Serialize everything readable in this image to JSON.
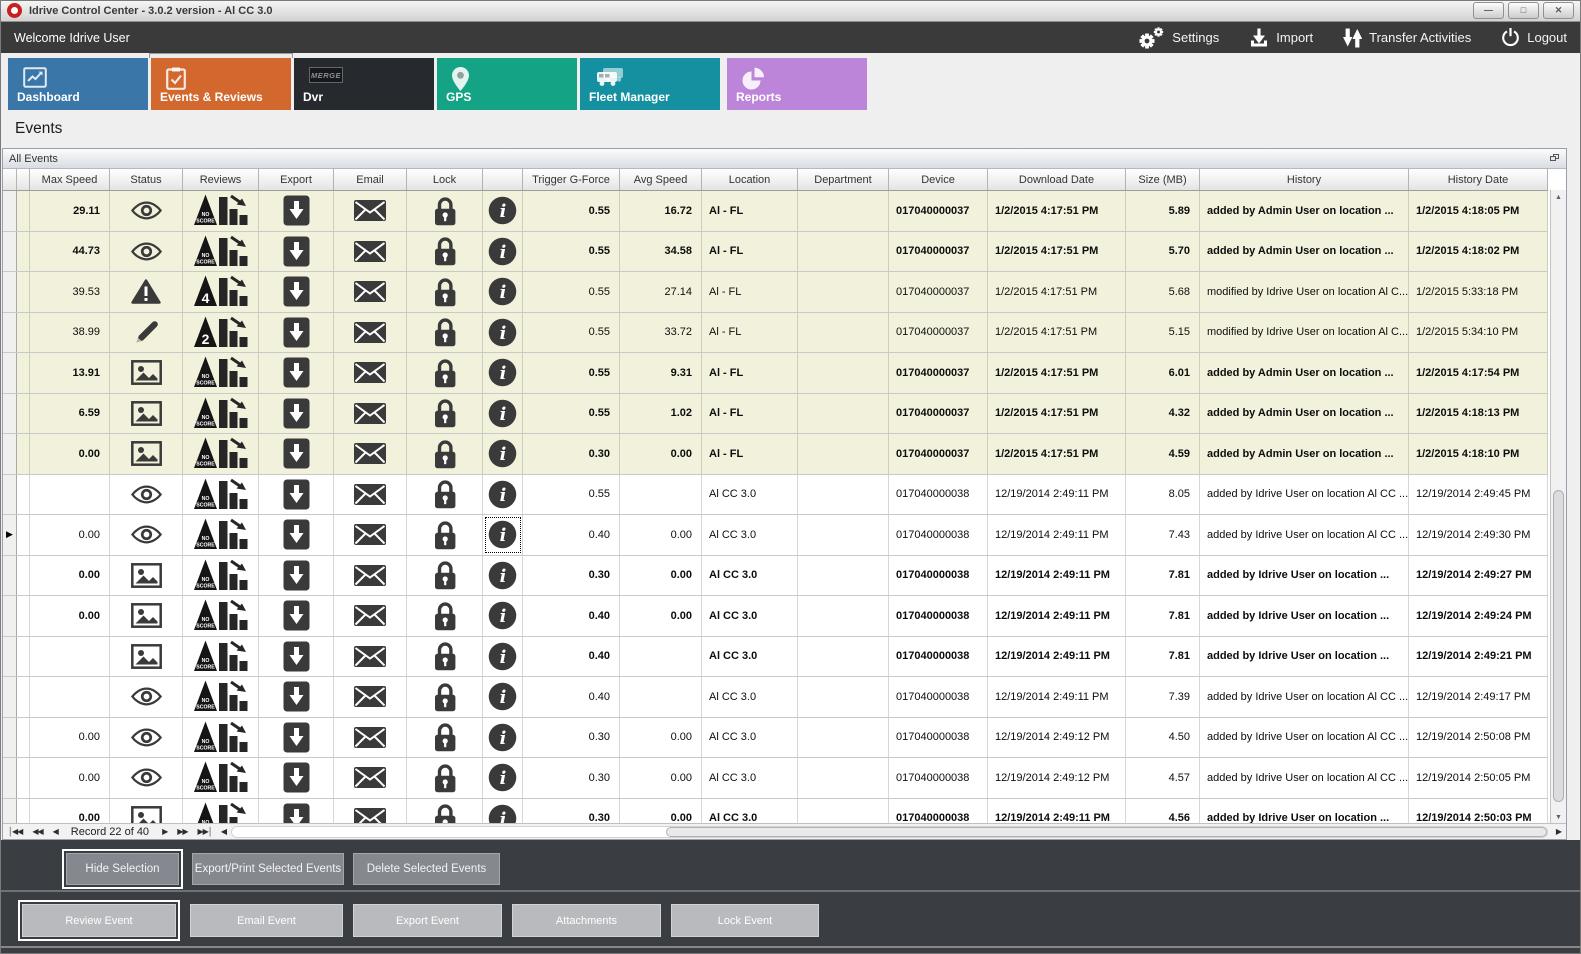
{
  "window": {
    "title": "Idrive Control Center - 3.0.2 version - Al CC 3.0",
    "controls": [
      {
        "name": "minimize",
        "glyph": "—"
      },
      {
        "name": "maximize",
        "glyph": "□"
      },
      {
        "name": "close",
        "glyph": "✕"
      }
    ]
  },
  "menubar": {
    "welcome": "Welcome Idrive User",
    "actions": [
      {
        "label": "Settings",
        "icon": "gears"
      },
      {
        "label": "Import",
        "icon": "import-arrow"
      },
      {
        "label": "Transfer Activities",
        "icon": "transfer-arrows"
      },
      {
        "label": "Logout",
        "icon": "power"
      }
    ]
  },
  "tabs": [
    {
      "label": "Dashboard",
      "color": "#3a76a8",
      "icon": "line-chart",
      "active": false
    },
    {
      "label": "Events & Reviews",
      "color": "#d2682e",
      "icon": "checklist",
      "active": true
    },
    {
      "label": "Dvr",
      "color": "#26292d",
      "icon": "merge-badge",
      "active": false
    },
    {
      "label": "GPS",
      "color": "#14a385",
      "icon": "location-pin",
      "active": false
    },
    {
      "label": "Fleet Manager",
      "color": "#1590a0",
      "icon": "vehicles",
      "active": false
    },
    {
      "label": "Reports",
      "color": "#bd85da",
      "icon": "pie-chart",
      "active": false
    }
  ],
  "section_title": "Events",
  "panel_title": "All Events",
  "table": {
    "columns": [
      "",
      "",
      "Max Speed",
      "Status",
      "Reviews",
      "Export",
      "Email",
      "Lock",
      "",
      "Trigger G-Force",
      "Avg Speed",
      "Location",
      "Department",
      "Device",
      "Download Date",
      "Size (MB)",
      "History",
      "History Date"
    ],
    "rows": [
      {
        "clip": "2",
        "max_speed": "29.11",
        "status": "eye",
        "score": "NO SCORE",
        "trigger": "0.55",
        "avg_speed": "16.72",
        "location": "Al - FL",
        "department": "",
        "device": "017040000037",
        "download_date": "1/2/2015 4:17:51 PM",
        "size": "5.89",
        "history": "added by Admin User on location ...",
        "history_date": "1/2/2015 4:18:05 PM",
        "bold": true,
        "highlight": true,
        "current": false
      },
      {
        "clip": "6",
        "max_speed": "44.73",
        "status": "eye",
        "score": "NO SCORE",
        "trigger": "0.55",
        "avg_speed": "34.58",
        "location": "Al - FL",
        "department": "",
        "device": "017040000037",
        "download_date": "1/2/2015 4:17:51 PM",
        "size": "5.70",
        "history": "added by Admin User on location ...",
        "history_date": "1/2/2015 4:18:02 PM",
        "bold": true,
        "highlight": true,
        "current": false
      },
      {
        "clip": "4",
        "max_speed": "39.53",
        "status": "warning",
        "score": "4",
        "trigger": "0.55",
        "avg_speed": "27.14",
        "location": "Al - FL",
        "department": "",
        "device": "017040000037",
        "download_date": "1/2/2015 4:17:51 PM",
        "size": "5.68",
        "history": "modified by Idrive User on location Al C...",
        "history_date": "1/2/2015 5:33:18 PM",
        "bold": false,
        "highlight": true,
        "current": false
      },
      {
        "clip": "9",
        "max_speed": "38.99",
        "status": "pencil",
        "score": "2",
        "trigger": "0.55",
        "avg_speed": "33.72",
        "location": "Al - FL",
        "department": "",
        "device": "017040000037",
        "download_date": "1/2/2015 4:17:51 PM",
        "size": "5.15",
        "history": "modified by Idrive User on location Al C...",
        "history_date": "1/2/2015 5:34:10 PM",
        "bold": false,
        "highlight": true,
        "current": false
      },
      {
        "clip": "6",
        "max_speed": "13.91",
        "status": "image",
        "score": "NO SCORE",
        "trigger": "0.55",
        "avg_speed": "9.31",
        "location": "Al - FL",
        "department": "",
        "device": "017040000037",
        "download_date": "1/2/2015 4:17:51 PM",
        "size": "6.01",
        "history": "added by Admin User on location ...",
        "history_date": "1/2/2015 4:17:54 PM",
        "bold": true,
        "highlight": true,
        "current": false
      },
      {
        "clip": "0",
        "max_speed": "6.59",
        "status": "image",
        "score": "NO SCORE",
        "trigger": "0.55",
        "avg_speed": "1.02",
        "location": "Al - FL",
        "department": "",
        "device": "017040000037",
        "download_date": "1/2/2015 4:17:51 PM",
        "size": "4.32",
        "history": "added by Admin User on location ...",
        "history_date": "1/2/2015 4:18:13 PM",
        "bold": true,
        "highlight": true,
        "current": false
      },
      {
        "clip": "0",
        "max_speed": "0.00",
        "status": "image",
        "score": "NO SCORE",
        "trigger": "0.30",
        "avg_speed": "0.00",
        "location": "Al - FL",
        "department": "",
        "device": "017040000037",
        "download_date": "1/2/2015 4:17:51 PM",
        "size": "4.59",
        "history": "added by Admin User on location ...",
        "history_date": "1/2/2015 4:18:10 PM",
        "bold": true,
        "highlight": true,
        "current": false
      },
      {
        "clip": "6",
        "max_speed": "",
        "status": "eye",
        "score": "NO SCORE",
        "trigger": "0.55",
        "avg_speed": "",
        "location": "Al CC 3.0",
        "department": "",
        "device": "017040000038",
        "download_date": "12/19/2014 2:49:11 PM",
        "size": "8.05",
        "history": "added by Idrive User on location Al CC ...",
        "history_date": "12/19/2014 2:49:45 PM",
        "bold": false,
        "highlight": false,
        "current": false
      },
      {
        "clip": "7",
        "max_speed": "0.00",
        "status": "eye",
        "score": "NO SCORE",
        "trigger": "0.40",
        "avg_speed": "0.00",
        "location": "Al CC 3.0",
        "department": "",
        "device": "017040000038",
        "download_date": "12/19/2014 2:49:11 PM",
        "size": "7.43",
        "history": "added by Idrive User on location Al CC ...",
        "history_date": "12/19/2014 2:49:30 PM",
        "bold": false,
        "highlight": false,
        "current": true
      },
      {
        "clip": "7",
        "max_speed": "0.00",
        "status": "image",
        "score": "NO SCORE",
        "trigger": "0.30",
        "avg_speed": "0.00",
        "location": "Al CC 3.0",
        "department": "",
        "device": "017040000038",
        "download_date": "12/19/2014 2:49:11 PM",
        "size": "7.81",
        "history": "added by Idrive User on location ...",
        "history_date": "12/19/2014 2:49:27 PM",
        "bold": true,
        "highlight": false,
        "current": false
      },
      {
        "clip": "6",
        "max_speed": "0.00",
        "status": "image",
        "score": "NO SCORE",
        "trigger": "0.40",
        "avg_speed": "0.00",
        "location": "Al CC 3.0",
        "department": "",
        "device": "017040000038",
        "download_date": "12/19/2014 2:49:11 PM",
        "size": "7.81",
        "history": "added by Idrive User on location ...",
        "history_date": "12/19/2014 2:49:24 PM",
        "bold": true,
        "highlight": false,
        "current": false
      },
      {
        "clip": "8",
        "max_speed": "",
        "status": "image",
        "score": "NO SCORE",
        "trigger": "0.40",
        "avg_speed": "",
        "location": "Al CC 3.0",
        "department": "",
        "device": "017040000038",
        "download_date": "12/19/2014 2:49:11 PM",
        "size": "7.81",
        "history": "added by Idrive User on location ...",
        "history_date": "12/19/2014 2:49:21 PM",
        "bold": true,
        "highlight": false,
        "current": false
      },
      {
        "clip": "6",
        "max_speed": "",
        "status": "eye",
        "score": "NO SCORE",
        "trigger": "0.40",
        "avg_speed": "",
        "location": "Al CC 3.0",
        "department": "",
        "device": "017040000038",
        "download_date": "12/19/2014 2:49:11 PM",
        "size": "7.39",
        "history": "added by Idrive User on location Al CC ...",
        "history_date": "12/19/2014 2:49:17 PM",
        "bold": false,
        "highlight": false,
        "current": false
      },
      {
        "clip": "6",
        "max_speed": "0.00",
        "status": "eye",
        "score": "NO SCORE",
        "trigger": "0.30",
        "avg_speed": "0.00",
        "location": "Al CC 3.0",
        "department": "",
        "device": "017040000038",
        "download_date": "12/19/2014 2:49:12 PM",
        "size": "4.50",
        "history": "added by Idrive User on location Al CC ...",
        "history_date": "12/19/2014 2:50:08 PM",
        "bold": false,
        "highlight": false,
        "current": false
      },
      {
        "clip": "8",
        "max_speed": "0.00",
        "status": "eye",
        "score": "NO SCORE",
        "trigger": "0.30",
        "avg_speed": "0.00",
        "location": "Al CC 3.0",
        "department": "",
        "device": "017040000038",
        "download_date": "12/19/2014 2:49:12 PM",
        "size": "4.57",
        "history": "added by Idrive User on location Al CC ...",
        "history_date": "12/19/2014 2:50:05 PM",
        "bold": false,
        "highlight": false,
        "current": false
      },
      {
        "clip": "6",
        "max_speed": "0.00",
        "status": "image",
        "score": "NO SCORE",
        "trigger": "0.30",
        "avg_speed": "0.00",
        "location": "Al CC 3.0",
        "department": "",
        "device": "017040000038",
        "download_date": "12/19/2014 2:49:11 PM",
        "size": "4.56",
        "history": "added by Idrive User on location ...",
        "history_date": "12/19/2014 2:50:03 PM",
        "bold": true,
        "highlight": false,
        "current": false
      }
    ]
  },
  "record_bar": {
    "text": "Record 22 of 40"
  },
  "footer": {
    "row1": [
      {
        "label": "Hide Selection",
        "focused": true
      },
      {
        "label": "Export/Print Selected Events",
        "focused": false
      },
      {
        "label": "Delete Selected  Events",
        "focused": false
      }
    ],
    "row2": [
      {
        "label": "Review Event",
        "focused": true
      },
      {
        "label": "Email Event",
        "focused": false
      },
      {
        "label": "Export Event",
        "focused": false
      },
      {
        "label": "Attachments",
        "focused": false
      },
      {
        "label": "Lock Event",
        "focused": false
      }
    ]
  }
}
